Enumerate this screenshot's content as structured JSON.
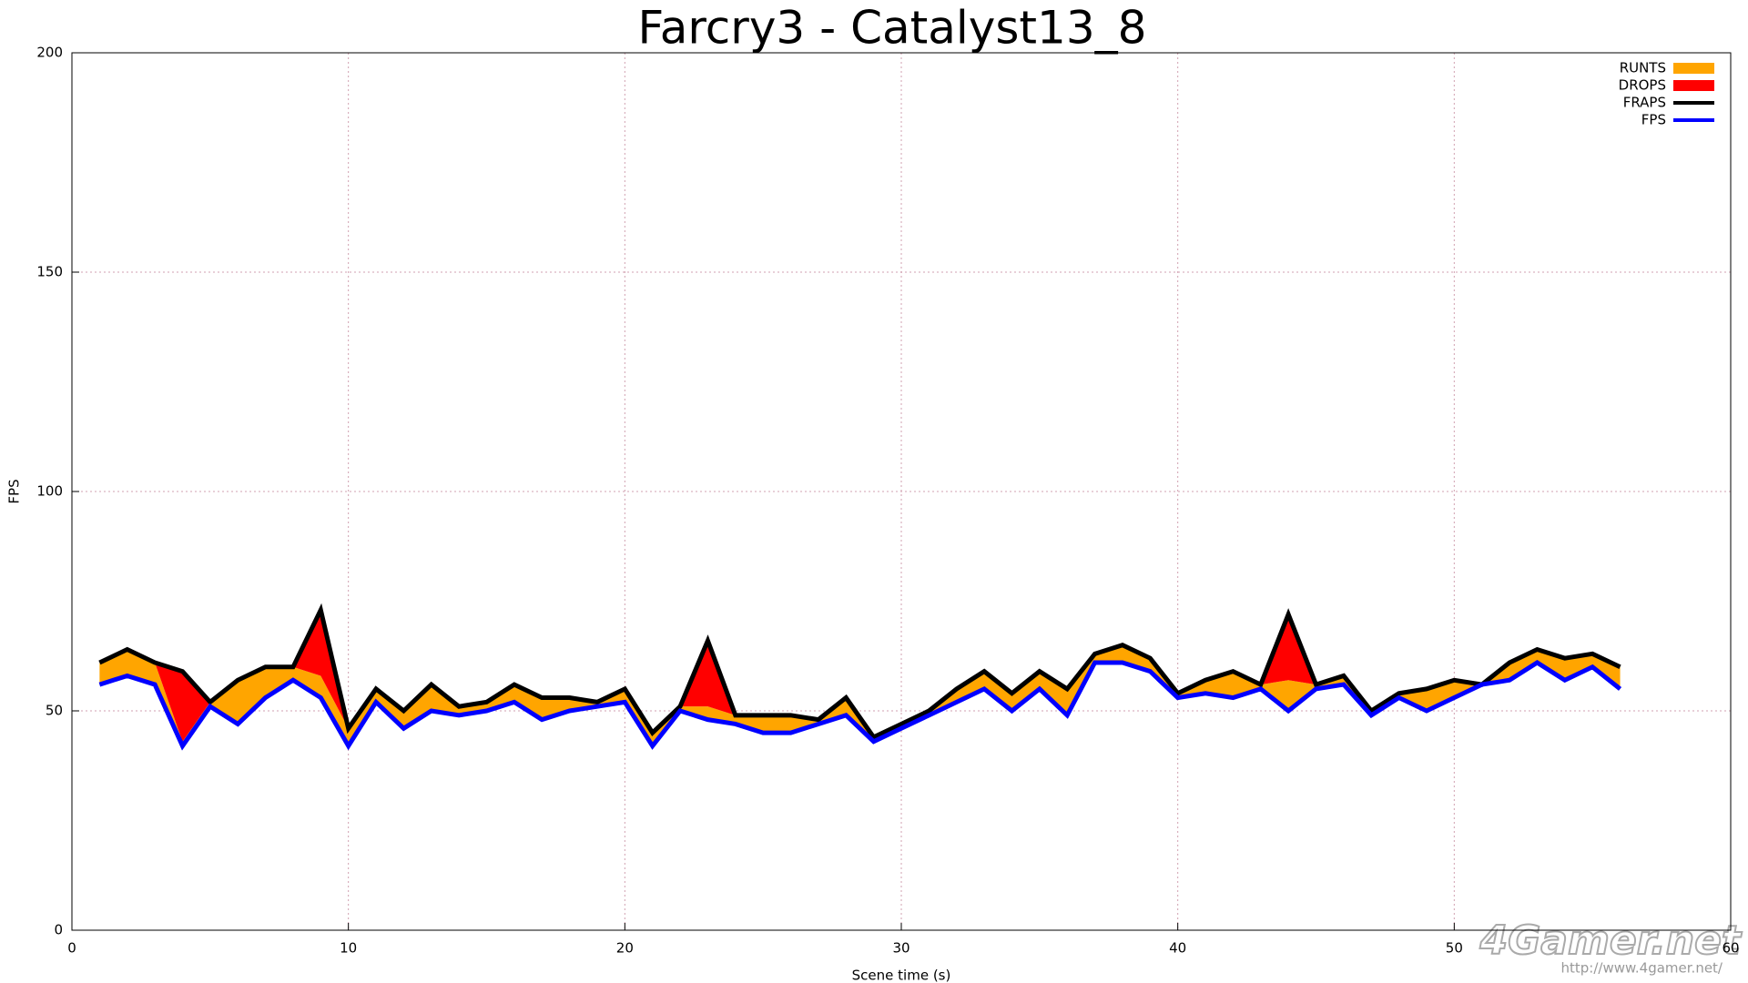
{
  "chart_data": {
    "type": "line",
    "title": "Farcry3 - Catalyst13_8",
    "x_label": "Scene time (s)",
    "y_label": "FPS",
    "watermark": "4Gamer.net",
    "watermark_url": "http://www.4gamer.net/",
    "x": [
      1,
      2,
      3,
      4,
      5,
      6,
      7,
      8,
      9,
      10,
      11,
      12,
      13,
      14,
      15,
      16,
      17,
      18,
      19,
      20,
      21,
      22,
      23,
      24,
      25,
      26,
      27,
      28,
      29,
      30,
      31,
      32,
      33,
      34,
      35,
      36,
      37,
      38,
      39,
      40,
      41,
      42,
      43,
      44,
      45,
      46,
      47,
      48,
      49,
      50,
      51,
      52,
      53,
      54,
      55,
      56
    ],
    "xlim": [
      0,
      60
    ],
    "xticks": [
      0,
      10,
      20,
      30,
      40,
      50,
      60
    ],
    "ylim": [
      0,
      200
    ],
    "yticks": [
      0,
      50,
      100,
      150,
      200
    ],
    "grid": true,
    "legend": "upper-right",
    "series": [
      {
        "name": "RUNTS",
        "color": "#ffa500",
        "style": "area",
        "values": [
          5,
          6,
          5,
          1,
          1,
          10,
          7,
          3,
          5,
          4,
          3,
          4,
          6,
          2,
          2,
          4,
          5,
          3,
          1,
          3,
          3,
          1,
          3,
          2,
          4,
          4,
          1,
          4,
          1,
          1,
          1,
          3,
          4,
          4,
          4,
          6,
          2,
          4,
          3,
          1,
          3,
          6,
          1,
          7,
          1,
          2,
          1,
          1,
          5,
          4,
          0,
          4,
          3,
          5,
          3,
          5
        ]
      },
      {
        "name": "DROPS",
        "color": "#ff0000",
        "style": "area",
        "values": [
          0,
          0,
          0,
          16,
          0,
          0,
          0,
          0,
          15,
          0,
          0,
          0,
          0,
          0,
          0,
          0,
          0,
          0,
          0,
          0,
          0,
          0,
          15,
          0,
          0,
          0,
          0,
          0,
          0,
          0,
          0,
          0,
          0,
          0,
          0,
          0,
          0,
          0,
          0,
          0,
          0,
          0,
          0,
          15,
          0,
          0,
          0,
          0,
          0,
          0,
          0,
          0,
          0,
          0,
          0,
          0
        ]
      },
      {
        "name": "FRAPS",
        "color": "#000000",
        "style": "line",
        "values": [
          61,
          64,
          61,
          59,
          52,
          57,
          60,
          60,
          73,
          46,
          55,
          50,
          56,
          51,
          52,
          56,
          53,
          53,
          52,
          55,
          45,
          51,
          66,
          49,
          49,
          49,
          48,
          53,
          44,
          47,
          50,
          55,
          59,
          54,
          59,
          55,
          63,
          65,
          62,
          54,
          57,
          59,
          56,
          72,
          56,
          58,
          50,
          54,
          55,
          57,
          56,
          61,
          64,
          62,
          63,
          60
        ]
      },
      {
        "name": "FPS",
        "color": "#0000ff",
        "style": "line",
        "values": [
          56,
          58,
          56,
          42,
          51,
          47,
          53,
          57,
          53,
          42,
          52,
          46,
          50,
          49,
          50,
          52,
          48,
          50,
          51,
          52,
          42,
          50,
          48,
          47,
          45,
          45,
          47,
          49,
          43,
          46,
          49,
          52,
          55,
          50,
          55,
          49,
          61,
          61,
          59,
          53,
          54,
          53,
          55,
          50,
          55,
          56,
          49,
          53,
          50,
          53,
          56,
          57,
          61,
          57,
          60,
          55
        ]
      }
    ]
  }
}
